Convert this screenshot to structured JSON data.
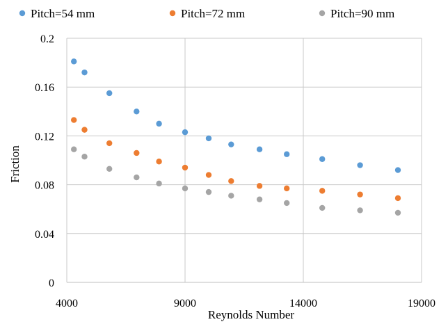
{
  "chart_data": {
    "type": "scatter",
    "title": "",
    "xlabel": "Reynolds Number",
    "ylabel": "Friction",
    "xlim": [
      4000,
      19000
    ],
    "ylim": [
      0,
      0.2
    ],
    "x_ticks": [
      4000,
      9000,
      14000,
      19000
    ],
    "y_ticks": [
      0,
      0.04,
      0.08,
      0.12,
      0.16,
      0.2
    ],
    "x_tick_labels": [
      "4000",
      "9000",
      "14000",
      "19000"
    ],
    "y_tick_labels": [
      "0",
      "0.04",
      "0.08",
      "0.12",
      "0.16",
      "0.2"
    ],
    "grid": true,
    "legend_position": "top",
    "series": [
      {
        "name": "Pitch=54 mm",
        "color": "#5b9bd5",
        "x": [
          4300,
          4750,
          5800,
          6950,
          7900,
          9000,
          10000,
          10950,
          12150,
          13300,
          14800,
          16400,
          18000
        ],
        "y": [
          0.181,
          0.172,
          0.155,
          0.14,
          0.13,
          0.123,
          0.118,
          0.113,
          0.109,
          0.105,
          0.101,
          0.096,
          0.092
        ]
      },
      {
        "name": "Pitch=72 mm",
        "color": "#ed7d31",
        "x": [
          4300,
          4750,
          5800,
          6950,
          7900,
          9000,
          10000,
          10950,
          12150,
          13300,
          14800,
          16400,
          18000
        ],
        "y": [
          0.133,
          0.125,
          0.114,
          0.106,
          0.099,
          0.094,
          0.088,
          0.083,
          0.079,
          0.077,
          0.075,
          0.072,
          0.069
        ]
      },
      {
        "name": "Pitch=90 mm",
        "color": "#a5a5a5",
        "x": [
          4300,
          4750,
          5800,
          6950,
          7900,
          9000,
          10000,
          10950,
          12150,
          13300,
          14800,
          16400,
          18000
        ],
        "y": [
          0.109,
          0.103,
          0.093,
          0.086,
          0.081,
          0.077,
          0.074,
          0.071,
          0.068,
          0.065,
          0.061,
          0.059,
          0.057
        ]
      }
    ]
  }
}
